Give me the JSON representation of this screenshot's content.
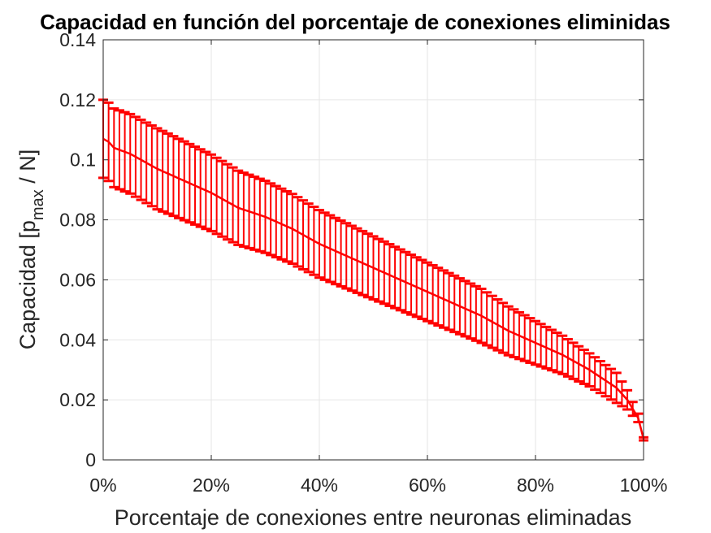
{
  "chart_data": {
    "type": "line",
    "title": "Capacidad en función del porcentaje de conexiones eliminidas",
    "xlabel": "Porcentaje de conexiones entre neuronas eliminadas",
    "ylabel_main": "Capacidad [p",
    "ylabel_sub": "max",
    "ylabel_tail": " / N]",
    "xlim": [
      0,
      100
    ],
    "ylim": [
      0,
      0.14
    ],
    "grid": true,
    "x_ticks": [
      0,
      20,
      40,
      60,
      80,
      100
    ],
    "x_tick_labels": [
      "0%",
      "20%",
      "40%",
      "60%",
      "80%",
      "100%"
    ],
    "y_ticks": [
      0,
      0.02,
      0.04,
      0.06,
      0.08,
      0.1,
      0.12,
      0.14
    ],
    "y_tick_labels": [
      "0",
      "0.02",
      "0.04",
      "0.06",
      "0.08",
      "0.1",
      "0.12",
      "0.14"
    ],
    "series": [
      {
        "color": "#ff0000",
        "errorbars": true,
        "x_start": 0,
        "x_step": 1,
        "mean_anchors": [
          [
            0,
            0.107
          ],
          [
            1,
            0.106
          ],
          [
            2,
            0.104
          ],
          [
            5,
            0.102
          ],
          [
            10,
            0.097
          ],
          [
            15,
            0.093
          ],
          [
            20,
            0.089
          ],
          [
            25,
            0.084
          ],
          [
            30,
            0.081
          ],
          [
            35,
            0.077
          ],
          [
            40,
            0.072
          ],
          [
            45,
            0.068
          ],
          [
            50,
            0.064
          ],
          [
            55,
            0.06
          ],
          [
            60,
            0.056
          ],
          [
            65,
            0.052
          ],
          [
            70,
            0.048
          ],
          [
            75,
            0.043
          ],
          [
            80,
            0.039
          ],
          [
            85,
            0.035
          ],
          [
            90,
            0.03
          ],
          [
            95,
            0.024
          ],
          [
            97,
            0.02
          ],
          [
            99,
            0.014
          ],
          [
            100,
            0.007
          ]
        ],
        "error_anchors": [
          [
            0,
            0.013
          ],
          [
            10,
            0.0135
          ],
          [
            30,
            0.012
          ],
          [
            50,
            0.0105
          ],
          [
            70,
            0.009
          ],
          [
            90,
            0.0055
          ],
          [
            95,
            0.005
          ],
          [
            100,
            0.0005
          ]
        ]
      }
    ]
  }
}
